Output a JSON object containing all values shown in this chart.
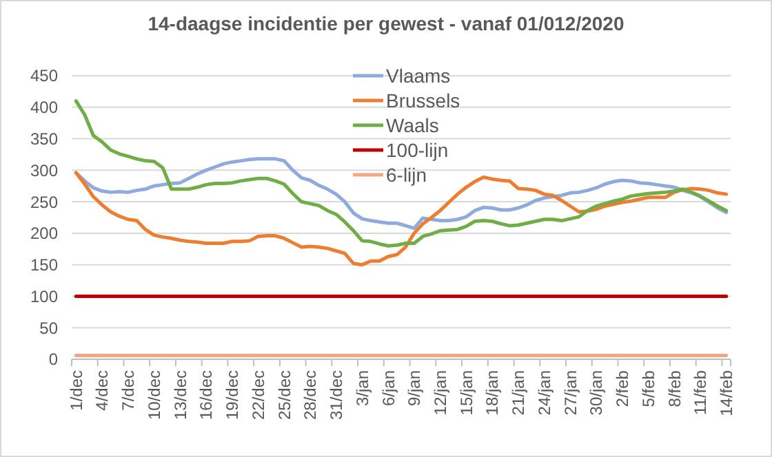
{
  "chart_data": {
    "type": "line",
    "title": "14-daagse incidentie per gewest - vanaf 01/012/2020",
    "categories": [
      "1/dec",
      null,
      null,
      "4/dec",
      null,
      null,
      "7/dec",
      null,
      null,
      "10/dec",
      null,
      null,
      "13/dec",
      null,
      null,
      "16/dec",
      null,
      null,
      "19/dec",
      null,
      null,
      "22/dec",
      null,
      null,
      "25/dec",
      null,
      null,
      "28/dec",
      null,
      null,
      "31/dec",
      null,
      null,
      "3/jan",
      null,
      null,
      "6/jan",
      null,
      null,
      "9/jan",
      null,
      null,
      "12/jan",
      null,
      null,
      "15/jan",
      null,
      null,
      "18/jan",
      null,
      null,
      "21/jan",
      null,
      null,
      "24/jan",
      null,
      null,
      "27/jan",
      null,
      null,
      "30/jan",
      null,
      null,
      "2/feb",
      null,
      null,
      "5/feb",
      null,
      null,
      "8/feb",
      null,
      null,
      "11/feb",
      null,
      null,
      "14/feb"
    ],
    "ylim": [
      0,
      450
    ],
    "yticks": [
      0,
      50,
      100,
      150,
      200,
      250,
      300,
      350,
      400,
      450
    ],
    "grid": "y",
    "legend": "top right",
    "series": [
      {
        "name": "Vlaams",
        "color": "#8faadc",
        "values": [
          296,
          283,
          272,
          267,
          265,
          266,
          265,
          268,
          270,
          275,
          277,
          279,
          280,
          287,
          294,
          300,
          305,
          310,
          313,
          315,
          317,
          318,
          318,
          318,
          315,
          300,
          288,
          284,
          276,
          270,
          262,
          250,
          232,
          223,
          220,
          218,
          216,
          216,
          212,
          208,
          224,
          222,
          220,
          220,
          222,
          226,
          236,
          241,
          240,
          237,
          237,
          240,
          245,
          252,
          256,
          258,
          260,
          264,
          265,
          268,
          272,
          278,
          282,
          284,
          283,
          280,
          279,
          277,
          275,
          273,
          268,
          264,
          258,
          249,
          240,
          233
        ]
      },
      {
        "name": "Brussels",
        "color": "#ed7d31",
        "values": [
          296,
          278,
          258,
          245,
          234,
          227,
          222,
          220,
          206,
          197,
          194,
          192,
          189,
          187,
          186,
          184,
          184,
          184,
          187,
          187,
          188,
          195,
          196,
          196,
          192,
          185,
          178,
          179,
          178,
          176,
          172,
          168,
          152,
          150,
          156,
          156,
          163,
          166,
          178,
          200,
          215,
          225,
          236,
          249,
          262,
          273,
          282,
          289,
          286,
          284,
          283,
          271,
          270,
          268,
          262,
          260,
          252,
          243,
          234,
          235,
          238,
          243,
          246,
          249,
          251,
          254,
          257,
          257,
          257,
          265,
          269,
          271,
          270,
          268,
          264,
          262
        ]
      },
      {
        "name": "Waals",
        "color": "#70ad47",
        "values": [
          410,
          388,
          355,
          345,
          332,
          326,
          322,
          318,
          315,
          314,
          304,
          270,
          270,
          270,
          273,
          277,
          279,
          279,
          280,
          283,
          285,
          287,
          287,
          283,
          278,
          263,
          250,
          247,
          244,
          236,
          230,
          218,
          204,
          188,
          187,
          183,
          180,
          181,
          184,
          184,
          195,
          199,
          204,
          205,
          206,
          211,
          219,
          220,
          219,
          215,
          212,
          213,
          216,
          219,
          222,
          222,
          220,
          223,
          226,
          236,
          243,
          247,
          251,
          254,
          259,
          261,
          263,
          264,
          265,
          267,
          270,
          265,
          259,
          251,
          243,
          236
        ]
      },
      {
        "name": "100-lijn",
        "color": "#c00000",
        "values": [
          100,
          100,
          100,
          100,
          100,
          100,
          100,
          100,
          100,
          100,
          100,
          100,
          100,
          100,
          100,
          100,
          100,
          100,
          100,
          100,
          100,
          100,
          100,
          100,
          100,
          100,
          100,
          100,
          100,
          100,
          100,
          100,
          100,
          100,
          100,
          100,
          100,
          100,
          100,
          100,
          100,
          100,
          100,
          100,
          100,
          100,
          100,
          100,
          100,
          100,
          100,
          100,
          100,
          100,
          100,
          100,
          100,
          100,
          100,
          100,
          100,
          100,
          100,
          100,
          100,
          100,
          100,
          100,
          100,
          100,
          100,
          100,
          100,
          100,
          100,
          100
        ]
      },
      {
        "name": "6-lijn",
        "color": "#f4a582",
        "values": [
          6,
          6,
          6,
          6,
          6,
          6,
          6,
          6,
          6,
          6,
          6,
          6,
          6,
          6,
          6,
          6,
          6,
          6,
          6,
          6,
          6,
          6,
          6,
          6,
          6,
          6,
          6,
          6,
          6,
          6,
          6,
          6,
          6,
          6,
          6,
          6,
          6,
          6,
          6,
          6,
          6,
          6,
          6,
          6,
          6,
          6,
          6,
          6,
          6,
          6,
          6,
          6,
          6,
          6,
          6,
          6,
          6,
          6,
          6,
          6,
          6,
          6,
          6,
          6,
          6,
          6,
          6,
          6,
          6,
          6,
          6,
          6,
          6,
          6,
          6,
          6
        ]
      }
    ]
  }
}
